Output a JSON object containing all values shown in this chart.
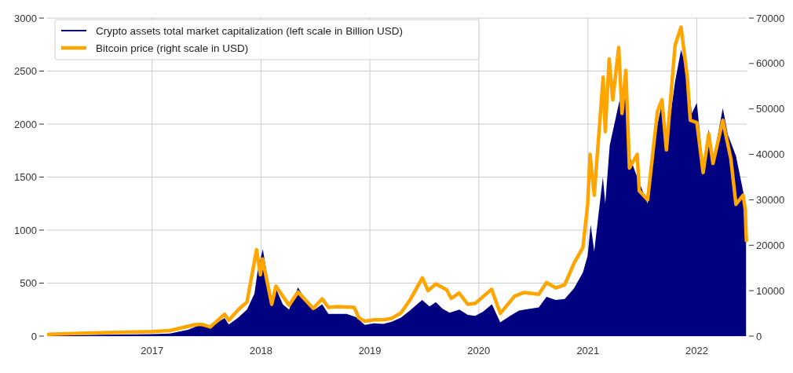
{
  "chart_data": {
    "type": "area",
    "legend": "top left",
    "grid": true,
    "xlim": [
      "2016-01-15",
      "2022-06-17"
    ],
    "xticks": [
      "2017",
      "2018",
      "2019",
      "2020",
      "2021",
      "2022"
    ],
    "ylim": [
      0,
      3000
    ],
    "yticks": [
      0,
      500,
      1000,
      1500,
      2000,
      2500,
      3000
    ],
    "y2lim": [
      0,
      70000
    ],
    "y2ticks": [
      0,
      10000,
      20000,
      30000,
      40000,
      50000,
      60000,
      70000
    ],
    "series": [
      {
        "name": "Crypto assets total market capitalization (left scale in Billion USD)",
        "color": "#000080",
        "x": [
          "2016-01-20",
          "2016-06-15",
          "2017-01-01",
          "2017-03-01",
          "2017-05-01",
          "2017-06-15",
          "2017-07-15",
          "2017-08-15",
          "2017-09-01",
          "2017-09-15",
          "2017-10-15",
          "2017-11-15",
          "2017-12-10",
          "2017-12-20",
          "2018-01-07",
          "2018-01-20",
          "2018-02-06",
          "2018-02-20",
          "2018-03-15",
          "2018-04-05",
          "2018-05-05",
          "2018-06-01",
          "2018-06-30",
          "2018-07-25",
          "2018-08-15",
          "2018-09-15",
          "2018-10-15",
          "2018-11-15",
          "2018-12-15",
          "2019-01-15",
          "2019-02-15",
          "2019-03-15",
          "2019-04-15",
          "2019-05-15",
          "2019-06-25",
          "2019-07-20",
          "2019-08-10",
          "2019-09-01",
          "2019-09-25",
          "2019-10-28",
          "2019-11-25",
          "2019-12-20",
          "2020-01-15",
          "2020-02-14",
          "2020-03-13",
          "2020-04-15",
          "2020-05-15",
          "2020-06-15",
          "2020-07-20",
          "2020-08-15",
          "2020-09-15",
          "2020-10-15",
          "2020-11-15",
          "2020-12-15",
          "2020-12-31",
          "2021-01-10",
          "2021-01-22",
          "2021-02-20",
          "2021-02-28",
          "2021-03-15",
          "2021-04-15",
          "2021-05-10",
          "2021-05-20",
          "2021-06-15",
          "2021-07-20",
          "2021-08-15",
          "2021-09-06",
          "2021-09-21",
          "2021-10-20",
          "2021-11-09",
          "2021-11-30",
          "2021-12-15",
          "2022-01-01",
          "2022-01-22",
          "2022-02-10",
          "2022-02-24",
          "2022-03-29",
          "2022-04-15",
          "2022-05-12",
          "2022-06-10",
          "2022-06-15"
        ],
        "values": [
          7,
          12,
          18,
          25,
          60,
          110,
          80,
          140,
          170,
          110,
          170,
          250,
          400,
          600,
          820,
          600,
          300,
          450,
          300,
          250,
          460,
          330,
          250,
          300,
          210,
          210,
          210,
          180,
          105,
          120,
          115,
          135,
          175,
          240,
          340,
          280,
          320,
          260,
          220,
          250,
          200,
          190,
          230,
          300,
          130,
          190,
          240,
          255,
          270,
          370,
          340,
          350,
          450,
          600,
          760,
          1050,
          800,
          1500,
          1250,
          1800,
          2200,
          2500,
          1700,
          1500,
          1250,
          1900,
          2200,
          1800,
          2400,
          2700,
          2500,
          2100,
          2200,
          1600,
          1950,
          1650,
          2150,
          1900,
          1700,
          1300,
          900
        ]
      },
      {
        "name": "Bitcoin price (right scale in USD)",
        "type": "line",
        "axis": "y2",
        "color": "#ffa500",
        "x": [
          "2016-01-20",
          "2016-06-15",
          "2017-01-01",
          "2017-03-01",
          "2017-05-25",
          "2017-06-15",
          "2017-07-15",
          "2017-09-01",
          "2017-09-15",
          "2017-10-20",
          "2017-11-15",
          "2017-12-17",
          "2017-12-30",
          "2018-01-06",
          "2018-02-06",
          "2018-02-20",
          "2018-04-05",
          "2018-05-05",
          "2018-06-25",
          "2018-07-25",
          "2018-08-15",
          "2018-09-15",
          "2018-10-15",
          "2018-11-10",
          "2018-11-25",
          "2018-12-15",
          "2019-01-15",
          "2019-02-15",
          "2019-03-15",
          "2019-04-15",
          "2019-05-15",
          "2019-06-26",
          "2019-07-15",
          "2019-08-10",
          "2019-09-15",
          "2019-10-01",
          "2019-10-27",
          "2019-11-25",
          "2019-12-20",
          "2020-02-13",
          "2020-03-13",
          "2020-04-30",
          "2020-06-01",
          "2020-07-20",
          "2020-08-15",
          "2020-09-15",
          "2020-10-15",
          "2020-11-15",
          "2020-12-15",
          "2020-12-31",
          "2021-01-08",
          "2021-01-22",
          "2021-02-21",
          "2021-02-28",
          "2021-03-13",
          "2021-03-25",
          "2021-04-14",
          "2021-04-25",
          "2021-05-08",
          "2021-05-20",
          "2021-06-15",
          "2021-06-22",
          "2021-07-20",
          "2021-08-22",
          "2021-09-06",
          "2021-09-21",
          "2021-10-20",
          "2021-11-09",
          "2021-11-30",
          "2021-12-10",
          "2022-01-01",
          "2022-01-22",
          "2022-02-10",
          "2022-02-24",
          "2022-03-29",
          "2022-04-25",
          "2022-05-12",
          "2022-06-05",
          "2022-06-12",
          "2022-06-16"
        ],
        "values": [
          400,
          700,
          1000,
          1200,
          2500,
          2600,
          2000,
          4800,
          3500,
          6000,
          7500,
          19000,
          13500,
          17000,
          7000,
          11000,
          6800,
          9700,
          6100,
          8200,
          6300,
          6500,
          6400,
          6300,
          4000,
          3300,
          3600,
          3600,
          3900,
          5100,
          7900,
          12800,
          10000,
          11500,
          10200,
          8300,
          9500,
          7000,
          7200,
          10300,
          5000,
          8800,
          9600,
          9200,
          11800,
          10600,
          11300,
          16000,
          19500,
          29000,
          40000,
          31000,
          57000,
          45000,
          61000,
          52000,
          63500,
          49000,
          58500,
          37000,
          40000,
          32000,
          30000,
          49500,
          52000,
          41000,
          64000,
          68000,
          57000,
          47500,
          47000,
          36000,
          44500,
          38000,
          47500,
          39000,
          29000,
          31000,
          28000,
          21000
        ]
      }
    ]
  }
}
